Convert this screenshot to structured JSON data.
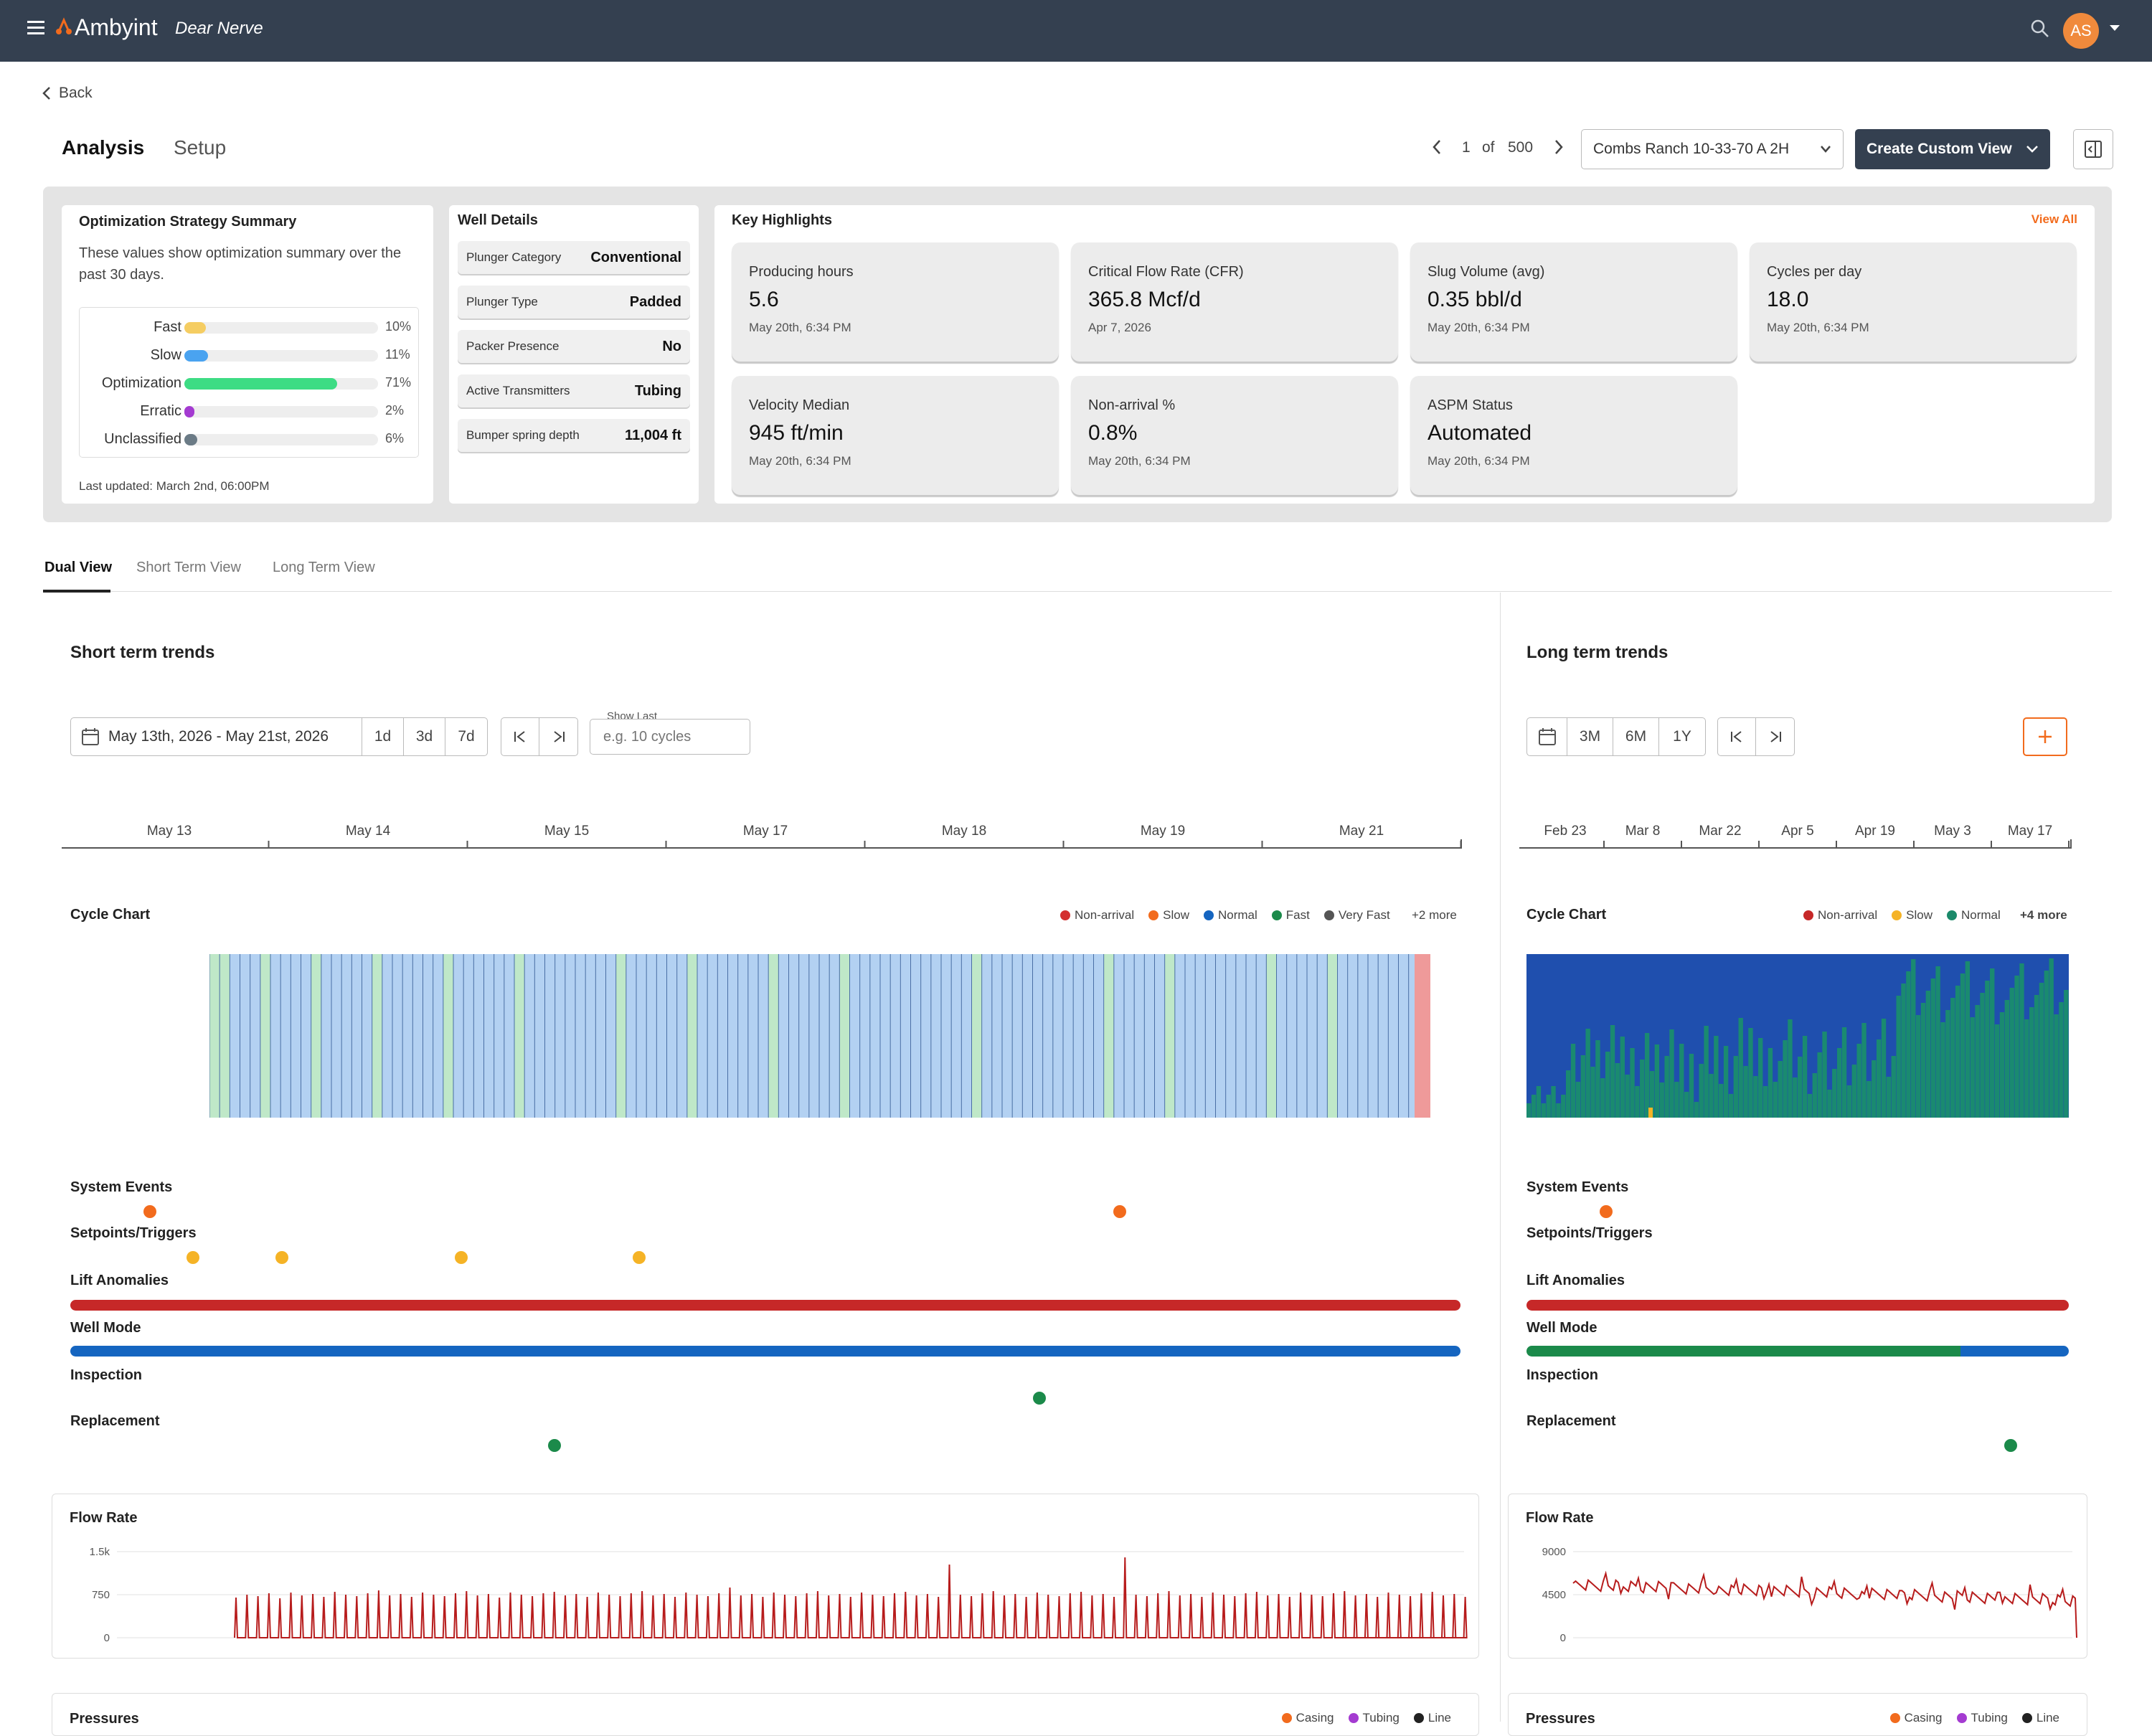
{
  "app": {
    "brand": "Ambyint",
    "subtitle": "Dear Nerve",
    "avatar": "AS"
  },
  "nav": {
    "back": "Back",
    "tabs": [
      "Analysis",
      "Setup"
    ],
    "pager": {
      "current": "1",
      "of": "of",
      "total": "500"
    },
    "well_select": "Combs Ranch 10-33-70 A 2H",
    "custom_view": "Create Custom View"
  },
  "opt": {
    "title": "Optimization Strategy Summary",
    "desc": "These values show optimization summary over the past 30 days.",
    "rows": [
      {
        "label": "Fast",
        "pct": "10%",
        "value": 0.1,
        "color": "#f5cd62"
      },
      {
        "label": "Slow",
        "pct": "11%",
        "value": 0.11,
        "color": "#4aa3f0"
      },
      {
        "label": "Optimization",
        "pct": "71%",
        "value": 0.71,
        "color": "#3ddc84"
      },
      {
        "label": "Erratic",
        "pct": "2%",
        "value": 0.02,
        "color": "#a43bd1"
      },
      {
        "label": "Unclassified",
        "pct": "6%",
        "value": 0.06,
        "color": "#6b7b86"
      }
    ],
    "updated": "Last updated: March 2nd, 06:00PM"
  },
  "well": {
    "title": "Well Details",
    "rows": [
      {
        "k": "Plunger Category",
        "v": "Conventional"
      },
      {
        "k": "Plunger Type",
        "v": "Padded"
      },
      {
        "k": "Packer Presence",
        "v": "No"
      },
      {
        "k": "Active Transmitters",
        "v": "Tubing"
      },
      {
        "k": "Bumper spring depth",
        "v": "11,004 ft"
      }
    ]
  },
  "highlights": {
    "title": "Key Highlights",
    "view_all": "View All",
    "items": [
      {
        "t": "Producing hours",
        "v": "5.6",
        "d": "May 20th, 6:34 PM"
      },
      {
        "t": "Critical Flow Rate (CFR)",
        "v": "365.8 Mcf/d",
        "d": "Apr 7, 2026"
      },
      {
        "t": "Slug Volume (avg)",
        "v": "0.35 bbl/d",
        "d": "May 20th, 6:34 PM"
      },
      {
        "t": "Cycles per day",
        "v": "18.0",
        "d": "May 20th, 6:34 PM"
      },
      {
        "t": "Velocity Median",
        "v": "945 ft/min",
        "d": "May 20th, 6:34 PM"
      },
      {
        "t": "Non-arrival %",
        "v": "0.8%",
        "d": "May 20th, 6:34 PM"
      },
      {
        "t": "ASPM Status",
        "v": "Automated",
        "d": "May 20th, 6:34 PM"
      }
    ]
  },
  "view_tabs": [
    "Dual View",
    "Short Term View",
    "Long Term View"
  ],
  "short": {
    "title": "Short term trends",
    "range": "May 13th, 2026 - May 21st, 2026",
    "periods": [
      "1d",
      "3d",
      "7d"
    ],
    "show_last_label": "Show Last",
    "show_last_placeholder": "e.g. 10 cycles",
    "dates": [
      "May 13",
      "May 14",
      "May 15",
      "May 17",
      "May 18",
      "May 19",
      "May 21"
    ],
    "cycle_title": "Cycle Chart",
    "legend": [
      {
        "n": "Non-arrival",
        "c": "#d32f2f"
      },
      {
        "n": "Slow",
        "c": "#f26b1d"
      },
      {
        "n": "Normal",
        "c": "#1565c0"
      },
      {
        "n": "Fast",
        "c": "#1b8a4a"
      },
      {
        "n": "Very Fast",
        "c": "#555555"
      }
    ],
    "more": "+2 more"
  },
  "long": {
    "title": "Long term trends",
    "periods": [
      "3M",
      "6M",
      "1Y"
    ],
    "dates": [
      "Feb 23",
      "Mar 8",
      "Mar 22",
      "Apr 5",
      "Apr 19",
      "May 3",
      "May 17"
    ],
    "cycle_title": "Cycle Chart",
    "legend": [
      {
        "n": "Non-arrival",
        "c": "#c62828"
      },
      {
        "n": "Slow",
        "c": "#f5b326"
      },
      {
        "n": "Normal",
        "c": "#1b8a6a"
      }
    ],
    "more": "+4 more"
  },
  "events": {
    "system": "System Events",
    "setpoints": "Setpoints/Triggers",
    "lift": "Lift Anomalies",
    "mode": "Well Mode",
    "inspection": "Inspection",
    "replacement": "Replacement"
  },
  "flow_short": {
    "title": "Flow Rate",
    "yticks": [
      "1.5k",
      "750",
      "0"
    ]
  },
  "flow_long": {
    "title": "Flow Rate",
    "yticks": [
      "9000",
      "4500",
      "0"
    ]
  },
  "pressures": {
    "title": "Pressures",
    "legend": [
      {
        "n": "Casing",
        "c": "#f26b1d"
      },
      {
        "n": "Tubing",
        "c": "#a43bd1"
      },
      {
        "n": "Line",
        "c": "#222222"
      }
    ]
  },
  "colors": {
    "topbar": "#344050",
    "accent": "#f26b1d",
    "red": "#c62828",
    "blue": "#1565c0",
    "green": "#1b8a4a"
  }
}
